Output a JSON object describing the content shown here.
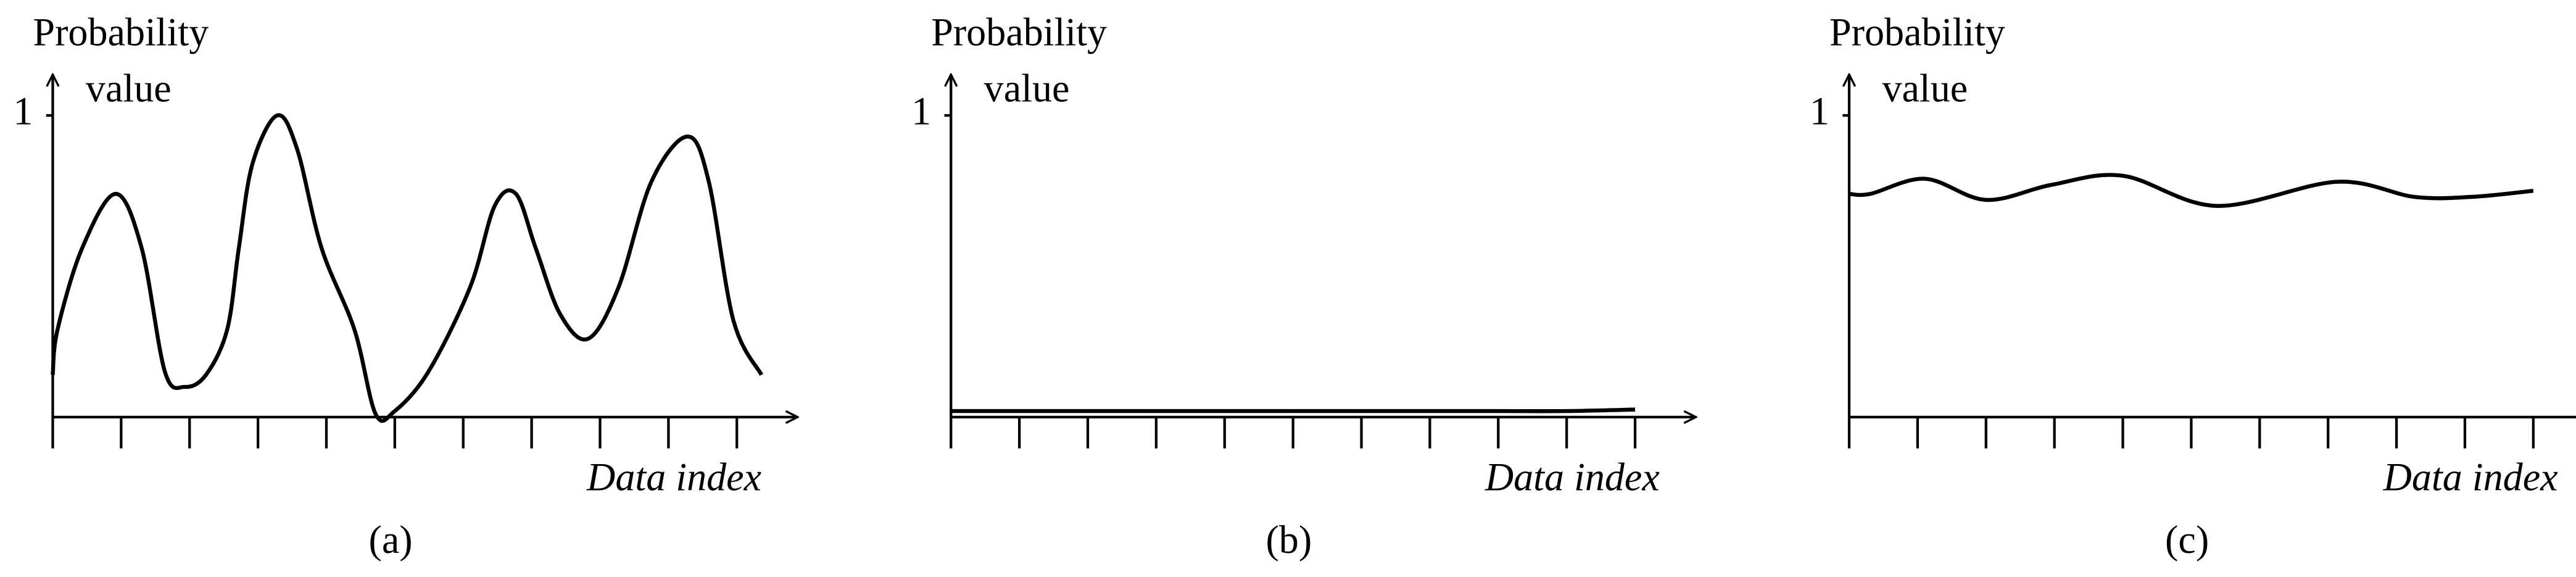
{
  "chart_data": [
    {
      "type": "line",
      "y_label": [
        "Probability",
        "value"
      ],
      "x_label": "Data index",
      "panel_label": "(a)",
      "color": "#000000",
      "x": [
        0,
        0.07,
        0.43,
        0.92,
        1.3,
        1.64,
        1.93,
        2.24,
        2.55,
        2.72,
        2.92,
        3.28,
        3.57,
        3.93,
        4.41,
        4.72,
        5.0,
        5.49,
        6.1,
        6.46,
        6.77,
        7.06,
        7.42,
        7.83,
        8.27,
        8.75,
        9.28,
        9.59,
        9.95,
        10.36
      ],
      "values": [
        0.14,
        0.29,
        0.56,
        0.74,
        0.56,
        0.15,
        0.1,
        0.14,
        0.29,
        0.56,
        0.84,
        1.0,
        0.89,
        0.56,
        0.29,
        0.01,
        0.02,
        0.15,
        0.43,
        0.7,
        0.74,
        0.56,
        0.34,
        0.26,
        0.43,
        0.78,
        0.93,
        0.78,
        0.32,
        0.14
      ],
      "xlim": [
        0,
        10.6
      ],
      "ylim": [
        0,
        1.07
      ],
      "yticks": [
        1
      ],
      "xticks": [
        0,
        1,
        2,
        3,
        4,
        5,
        6,
        7,
        8,
        9,
        10
      ]
    },
    {
      "type": "line",
      "y_label": [
        "Probability",
        "value"
      ],
      "x_label": "Data index",
      "panel_label": "(b)",
      "color": "#000000",
      "x": [
        0,
        1,
        2,
        3,
        4,
        5,
        6,
        7,
        8,
        9,
        10
      ],
      "values": [
        0.02,
        0.02,
        0.02,
        0.02,
        0.02,
        0.02,
        0.02,
        0.02,
        0.02,
        0.02,
        0.025
      ],
      "xlim": [
        0,
        10.6
      ],
      "ylim": [
        0,
        1.07
      ],
      "yticks": [
        1
      ],
      "xticks": [
        0,
        1,
        2,
        3,
        4,
        5,
        6,
        7,
        8,
        9,
        10
      ]
    },
    {
      "type": "line",
      "y_label": [
        "Probability",
        "value"
      ],
      "x_label": "Data index",
      "panel_label": "(c)",
      "color": "#000000",
      "x": [
        0,
        0.31,
        1.11,
        2.0,
        2.96,
        4.0,
        5.37,
        7.13,
        8.26,
        9.1,
        10.0
      ],
      "values": [
        0.74,
        0.74,
        0.79,
        0.72,
        0.77,
        0.8,
        0.7,
        0.78,
        0.73,
        0.73,
        0.75
      ],
      "xlim": [
        0,
        10.6
      ],
      "ylim": [
        0,
        1.07
      ],
      "yticks": [
        1
      ],
      "xticks": [
        0,
        1,
        2,
        3,
        4,
        5,
        6,
        7,
        8,
        9,
        10
      ]
    }
  ]
}
